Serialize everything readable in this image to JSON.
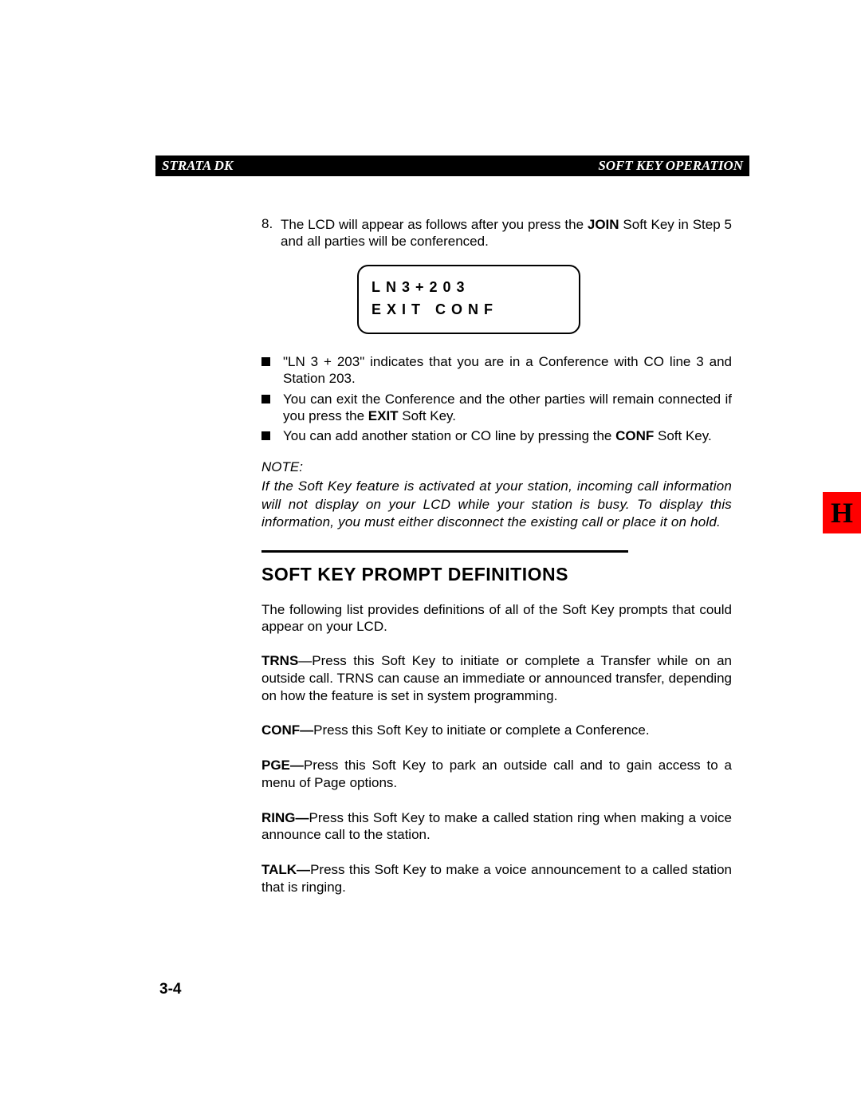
{
  "header": {
    "left": "STRATA DK",
    "right": "SOFT KEY OPERATION"
  },
  "step": {
    "number": "8.",
    "text_prefix": "The LCD will appear as follows after you press the ",
    "text_bold": "JOIN",
    "text_suffix": " Soft Key in Step 5 and all parties will be conferenced."
  },
  "lcd": {
    "line1": "LN3+203",
    "line2": "EXIT CONF"
  },
  "bullets": [
    {
      "segments": [
        {
          "t": "\"LN 3 + 203\" indicates that you are in a Conference with CO line 3 and Station 203.",
          "b": false
        }
      ]
    },
    {
      "segments": [
        {
          "t": "You can exit the Conference and the other parties will remain connected if you press the ",
          "b": false
        },
        {
          "t": "EXIT",
          "b": true
        },
        {
          "t": " Soft Key.",
          "b": false
        }
      ]
    },
    {
      "segments": [
        {
          "t": "You can add another station or CO line by pressing the ",
          "b": false
        },
        {
          "t": "CONF",
          "b": true
        },
        {
          "t": " Soft Key.",
          "b": false
        }
      ]
    }
  ],
  "note": {
    "label": "NOTE:",
    "body": "If the Soft Key feature is activated at your station, incoming call information will not display on your LCD while your station is busy. To display this information, you must either disconnect the existing call or place it on hold."
  },
  "section_title": "SOFT KEY PROMPT DEFINITIONS",
  "intro": "The following list provides definitions of all of the Soft Key prompts that could appear on your LCD.",
  "definitions": [
    {
      "term": "TRNS",
      "sep": "—",
      "body": "Press this Soft Key to initiate or complete a Transfer while on an outside call. TRNS can cause an immediate or announced transfer, depending on how the feature is set in system programming."
    },
    {
      "term": "CONF—",
      "sep": "",
      "body": "Press this Soft Key to initiate or complete a Conference."
    },
    {
      "term": "PGE—",
      "sep": "",
      "body": "Press this Soft Key to park an outside call and to gain access to a menu of Page options."
    },
    {
      "term": "RING—",
      "sep": "",
      "body": "Press this Soft Key to make a called station ring when making a voice announce call to the station."
    },
    {
      "term": "TALK—",
      "sep": "",
      "body": "Press this Soft Key to make a voice announcement to a called station that is ringing."
    }
  ],
  "tab_letter": "H",
  "page_number": "3-4",
  "colors": {
    "tab_bg": "#ff0000",
    "header_bg": "#000000",
    "text": "#000000"
  }
}
